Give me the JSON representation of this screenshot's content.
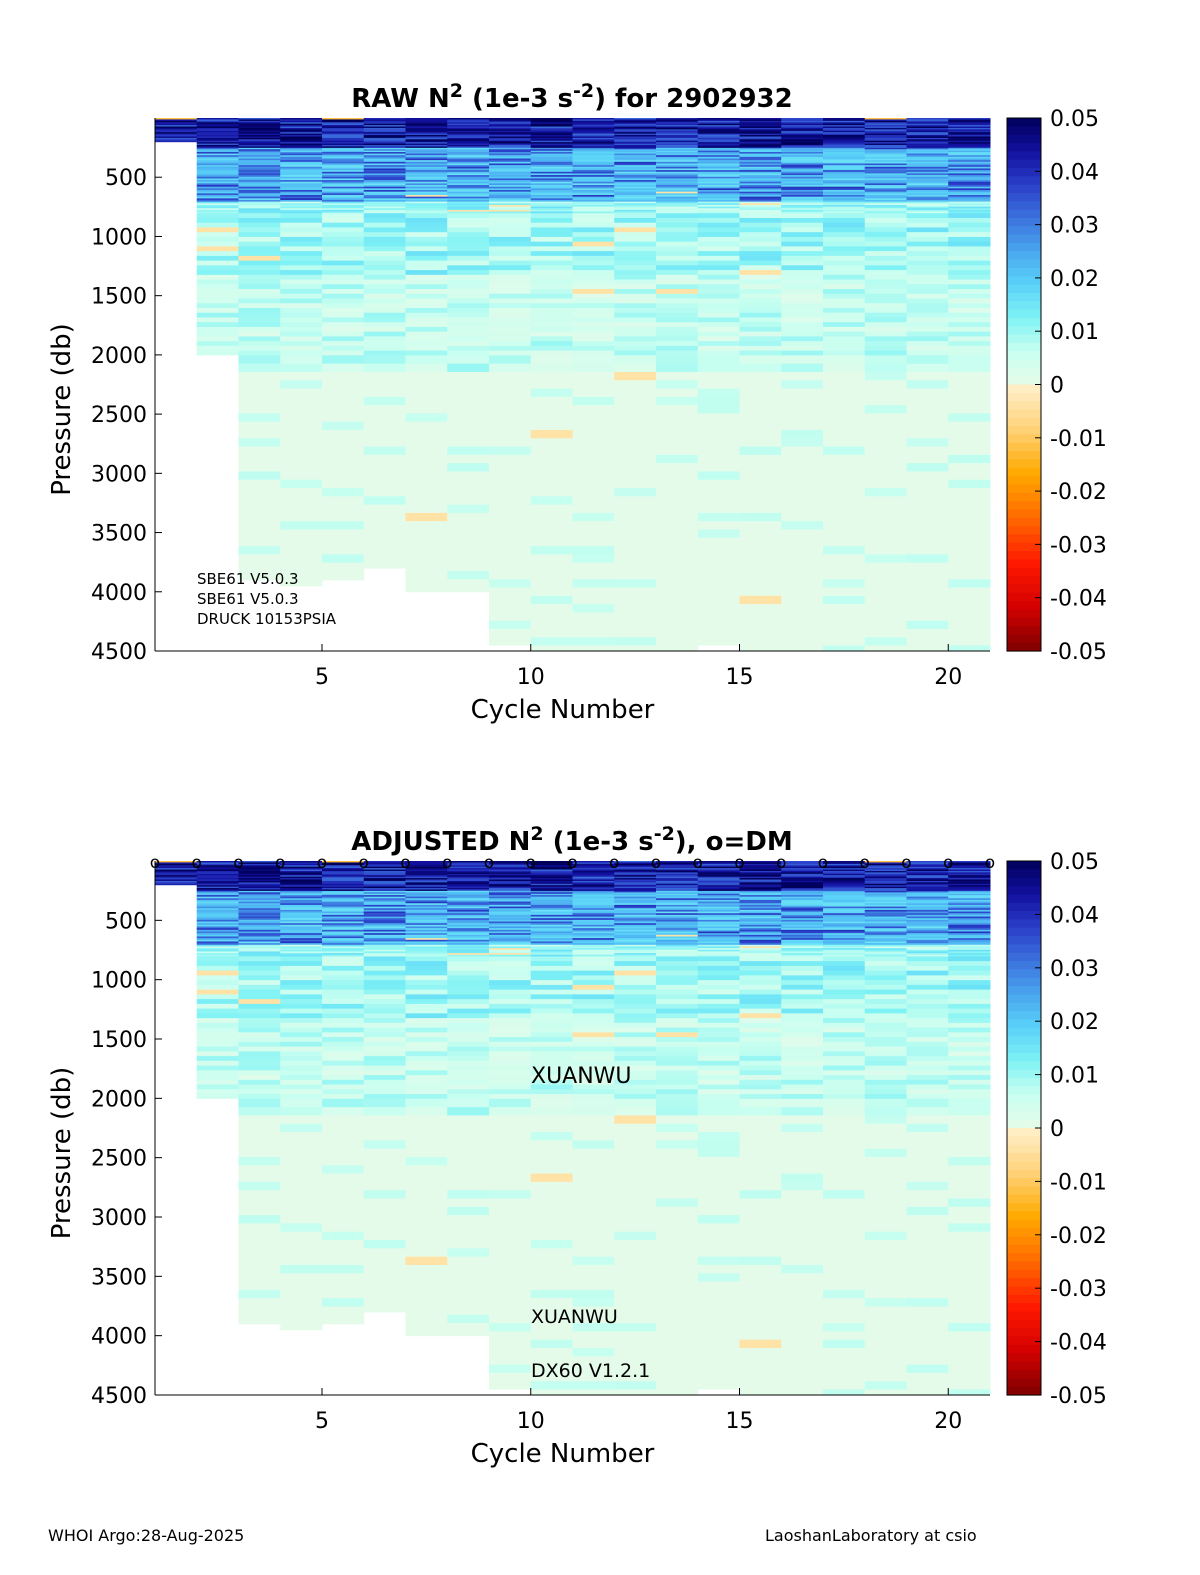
{
  "footer": {
    "left": "WHOI Argo:28-Aug-2025",
    "right": "LaoshanLaboratory at csio"
  },
  "colors": {
    "axis": "#000000",
    "background": "#ffffff",
    "colormap_positive": [
      "#e6fbe9",
      "#c8fff0",
      "#7ff2f5",
      "#5ad2f8",
      "#4aa6ef",
      "#3b72dd",
      "#2a3fc8",
      "#12109e",
      "#00005a"
    ],
    "colormap_negative": [
      "#fff0cc",
      "#ffd27a",
      "#ffaa00",
      "#ff6a00",
      "#ff1a00",
      "#d40000",
      "#7f0000"
    ]
  },
  "chart_data": [
    {
      "type": "heatmap",
      "title": "RAW N² (1e-3 s⁻²) for 2902932",
      "title_parts": {
        "a": "RAW N",
        "sup1": "2",
        "b": " (1e-3 s",
        "sup2": "-2",
        "c": ") for 2902932"
      },
      "xlabel": "Cycle Number",
      "ylabel": "Pressure (db)",
      "xlim": [
        1,
        21
      ],
      "ylim": [
        4500,
        0
      ],
      "xticks": [
        5,
        10,
        15,
        20
      ],
      "yticks": [
        500,
        1000,
        1500,
        2000,
        2500,
        3000,
        3500,
        4000,
        4500
      ],
      "color_range": [
        -0.05,
        0.05
      ],
      "colorbar_ticks": [
        0.05,
        0.04,
        0.03,
        0.02,
        0.01,
        0,
        -0.01,
        -0.02,
        -0.03,
        -0.04,
        -0.05
      ],
      "colorbar_tick_labels": [
        "0.05",
        "0.04",
        "0.03",
        "0.02",
        "0.01",
        "0",
        "-0.01",
        "-0.02",
        "-0.03",
        "-0.04",
        "-0.05"
      ],
      "cycles": [
        1,
        2,
        3,
        4,
        5,
        6,
        7,
        8,
        9,
        10,
        11,
        12,
        13,
        14,
        15,
        16,
        17,
        18,
        19,
        20
      ],
      "max_pressure_per_cycle": [
        200,
        2000,
        3900,
        3950,
        3900,
        3800,
        4000,
        4000,
        4450,
        4500,
        4500,
        4500,
        4500,
        4450,
        4500,
        4500,
        4500,
        4500,
        4500,
        4500
      ],
      "dm_markers": false,
      "annotations": [
        "SBE61 V5.0.3",
        "SBE61 V5.0.3",
        "DRUCK 10153PSIA"
      ]
    },
    {
      "type": "heatmap",
      "title": "ADJUSTED N² (1e-3 s⁻²), o=DM",
      "title_parts": {
        "a": "ADJUSTED N",
        "sup1": "2",
        "b": " (1e-3 s",
        "sup2": "-2",
        "c": "), o=DM"
      },
      "xlabel": "Cycle Number",
      "ylabel": "Pressure (db)",
      "xlim": [
        1,
        21
      ],
      "ylim": [
        4500,
        0
      ],
      "xticks": [
        5,
        10,
        15,
        20
      ],
      "yticks": [
        500,
        1000,
        1500,
        2000,
        2500,
        3000,
        3500,
        4000,
        4500
      ],
      "color_range": [
        -0.05,
        0.05
      ],
      "colorbar_ticks": [
        0.05,
        0.04,
        0.03,
        0.02,
        0.01,
        0,
        -0.01,
        -0.02,
        -0.03,
        -0.04,
        -0.05
      ],
      "colorbar_tick_labels": [
        "0.05",
        "0.04",
        "0.03",
        "0.02",
        "0.01",
        "0",
        "-0.01",
        "-0.02",
        "-0.03",
        "-0.04",
        "-0.05"
      ],
      "cycles": [
        1,
        2,
        3,
        4,
        5,
        6,
        7,
        8,
        9,
        10,
        11,
        12,
        13,
        14,
        15,
        16,
        17,
        18,
        19,
        20
      ],
      "max_pressure_per_cycle": [
        200,
        2000,
        3900,
        3950,
        3900,
        3800,
        4000,
        4000,
        4450,
        4500,
        4500,
        4500,
        4500,
        4450,
        4500,
        4500,
        4500,
        4500,
        4500,
        4500
      ],
      "dm_markers": true,
      "dm_cycles": [
        1,
        2,
        3,
        4,
        5,
        6,
        7,
        8,
        9,
        10,
        11,
        12,
        13,
        14,
        15,
        16,
        17,
        18,
        19,
        20,
        21
      ],
      "dm_marker_symbol": "o",
      "annotations": [
        "XUANWU",
        "XUANWU",
        "DX60 V1.2.1"
      ]
    }
  ]
}
